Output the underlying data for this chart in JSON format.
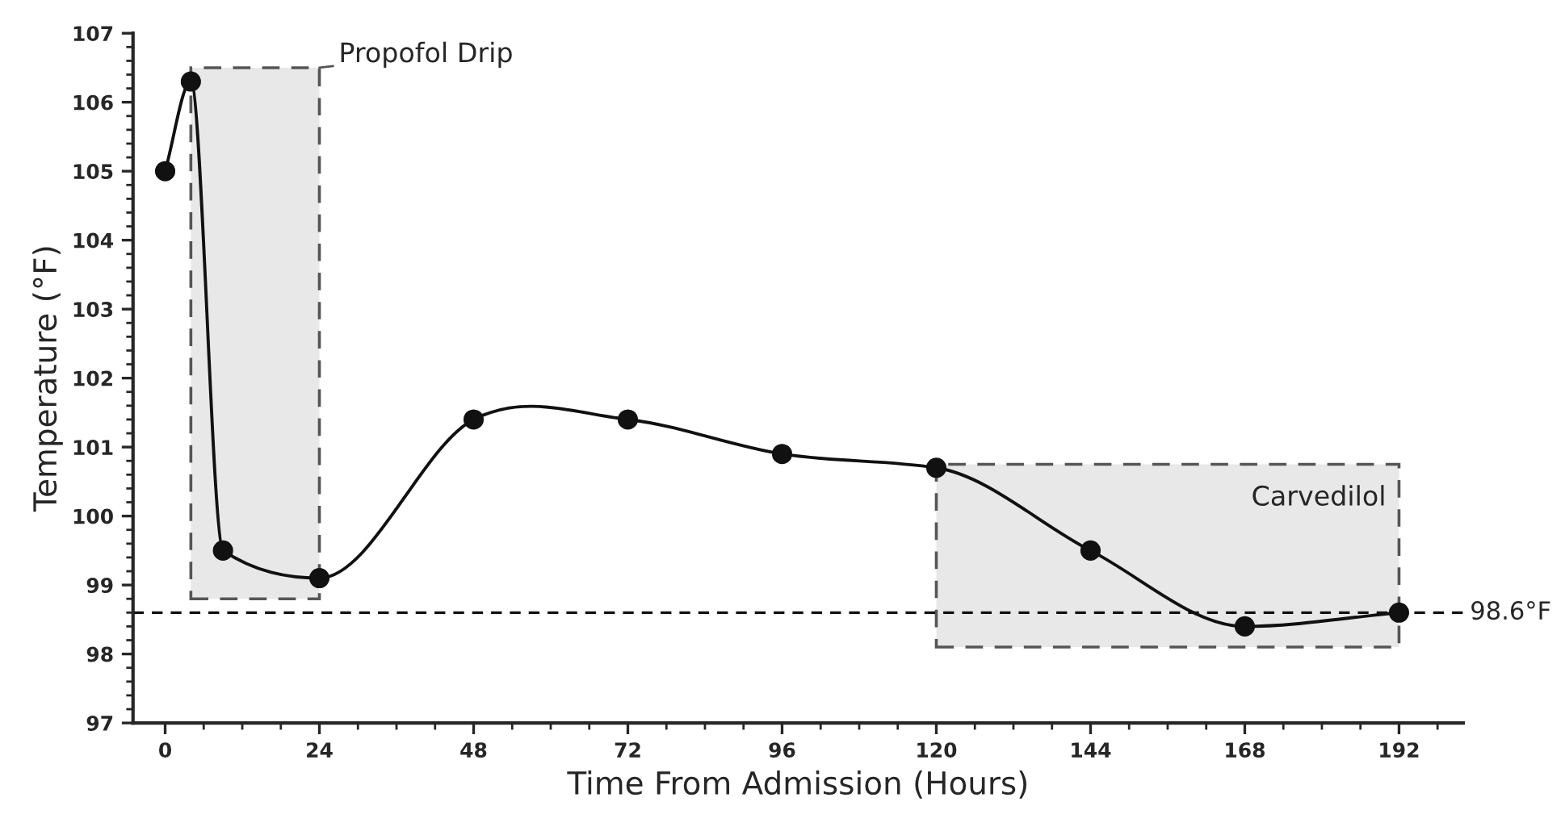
{
  "chart_data": {
    "type": "line",
    "xlabel": "Time From Admission (Hours)",
    "ylabel": "Temperature (°F)",
    "x": [
      0,
      4,
      9,
      24,
      48,
      72,
      96,
      120,
      144,
      168,
      192
    ],
    "series": [
      {
        "color": "#111111",
        "values": [
          105,
          106.3,
          99.5,
          99.1,
          101.4,
          101.4,
          100.9,
          100.7,
          99.5,
          98.4,
          98.6
        ]
      }
    ],
    "marker": "circle",
    "line_style": "solid",
    "xlim": [
      -5,
      202
    ],
    "xticks": [
      0,
      24,
      48,
      72,
      96,
      120,
      144,
      168,
      192
    ],
    "ylim": [
      97,
      107
    ],
    "yticks": [
      97,
      98,
      99,
      100,
      101,
      102,
      103,
      104,
      105,
      106,
      107
    ],
    "ref_lines": [
      {
        "axis": "y",
        "value": 98.6,
        "label": "98.6°F",
        "line_style": "dashed",
        "color": "#111111"
      }
    ],
    "bands": [
      {
        "axis": "x",
        "from": 4,
        "to": 24,
        "label": "Propofol Drip",
        "color": "#e8e8e8"
      },
      {
        "axis": "x",
        "from": 120,
        "to": 192,
        "label": "Carvedilol",
        "color": "#e8e8e8"
      }
    ],
    "grid": false
  }
}
